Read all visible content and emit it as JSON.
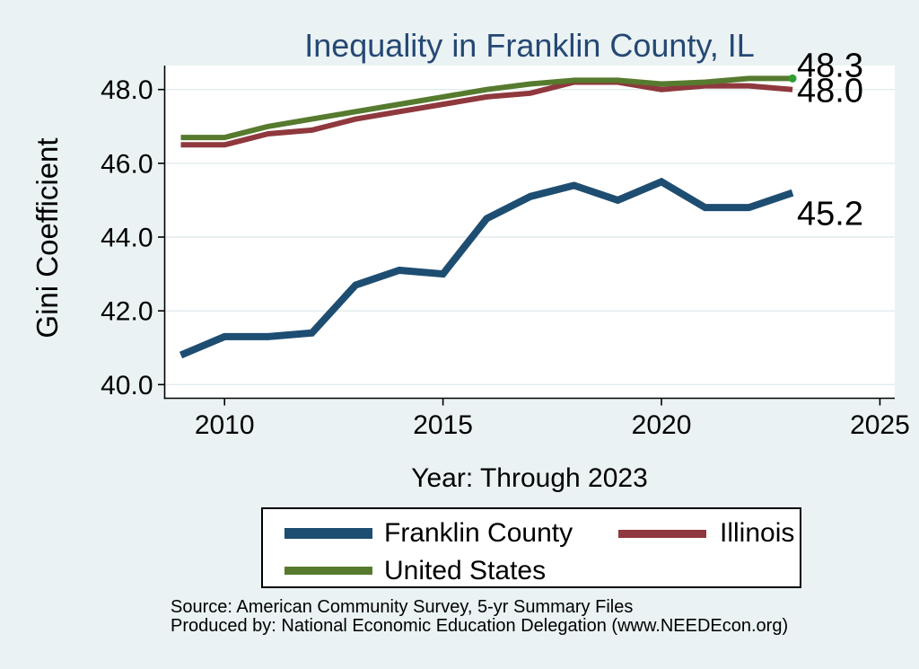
{
  "title": "Inequality in Franklin County, IL",
  "y_axis": {
    "label": "Gini Coefficient"
  },
  "x_axis": {
    "label": "Year: Through 2023"
  },
  "chart_data": {
    "type": "line",
    "title": "Inequality in Franklin County, IL",
    "xlabel": "Year: Through 2023",
    "ylabel": "Gini Coefficient",
    "x": [
      2009,
      2010,
      2011,
      2012,
      2013,
      2014,
      2015,
      2016,
      2017,
      2018,
      2019,
      2020,
      2021,
      2022,
      2023
    ],
    "xlim": [
      2008.63,
      2025.34
    ],
    "ylim": [
      39.63,
      48.65
    ],
    "xticks": [
      2010,
      2015,
      2020,
      2025
    ],
    "xtick_labels": [
      "2010",
      "2015",
      "2020",
      "2025"
    ],
    "yticks": [
      40.0,
      42.0,
      44.0,
      46.0,
      48.0
    ],
    "ytick_labels": [
      "40.0",
      "42.0",
      "44.0",
      "46.0",
      "48.0"
    ],
    "grid": "horizontal",
    "legend_position": "bottom",
    "series": [
      {
        "name": "Franklin County",
        "color": "#1e4d72",
        "line_width": 8,
        "values": [
          40.8,
          41.3,
          41.3,
          41.4,
          42.7,
          43.1,
          43.0,
          44.5,
          45.1,
          45.4,
          45.0,
          45.5,
          44.8,
          44.8,
          45.2
        ],
        "end_label": "45.2"
      },
      {
        "name": "Illinois",
        "color": "#8f383d",
        "line_width": 6,
        "values": [
          46.5,
          46.5,
          46.8,
          46.9,
          47.2,
          47.4,
          47.6,
          47.8,
          47.9,
          48.2,
          48.2,
          48.0,
          48.1,
          48.1,
          48.0
        ],
        "end_label": "48.0"
      },
      {
        "name": "United States",
        "color": "#567a2e",
        "line_width": 6,
        "values": [
          46.7,
          46.7,
          47.0,
          47.2,
          47.4,
          47.6,
          47.8,
          48.0,
          48.15,
          48.25,
          48.25,
          48.15,
          48.2,
          48.3,
          48.3
        ],
        "end_label": "48.3",
        "end_marker_color": "#2f9e32"
      }
    ]
  },
  "legend": {
    "items": [
      {
        "label": "Franklin County",
        "color": "#1e4d72"
      },
      {
        "label": "Illinois",
        "color": "#8f383d"
      },
      {
        "label": "United States",
        "color": "#567a2e"
      }
    ]
  },
  "footer": {
    "source_line": "Source: American Community Survey, 5-yr Summary Files",
    "produced_line": "Produced by: National Economic Education Delegation (www.NEEDEcon.org)"
  },
  "colors": {
    "background": "#eaf2f3",
    "plot_background": "#ffffff",
    "gridline": "#e0ebee",
    "axis": "#000000",
    "title": "#254874",
    "end_label_text": "#000000"
  }
}
